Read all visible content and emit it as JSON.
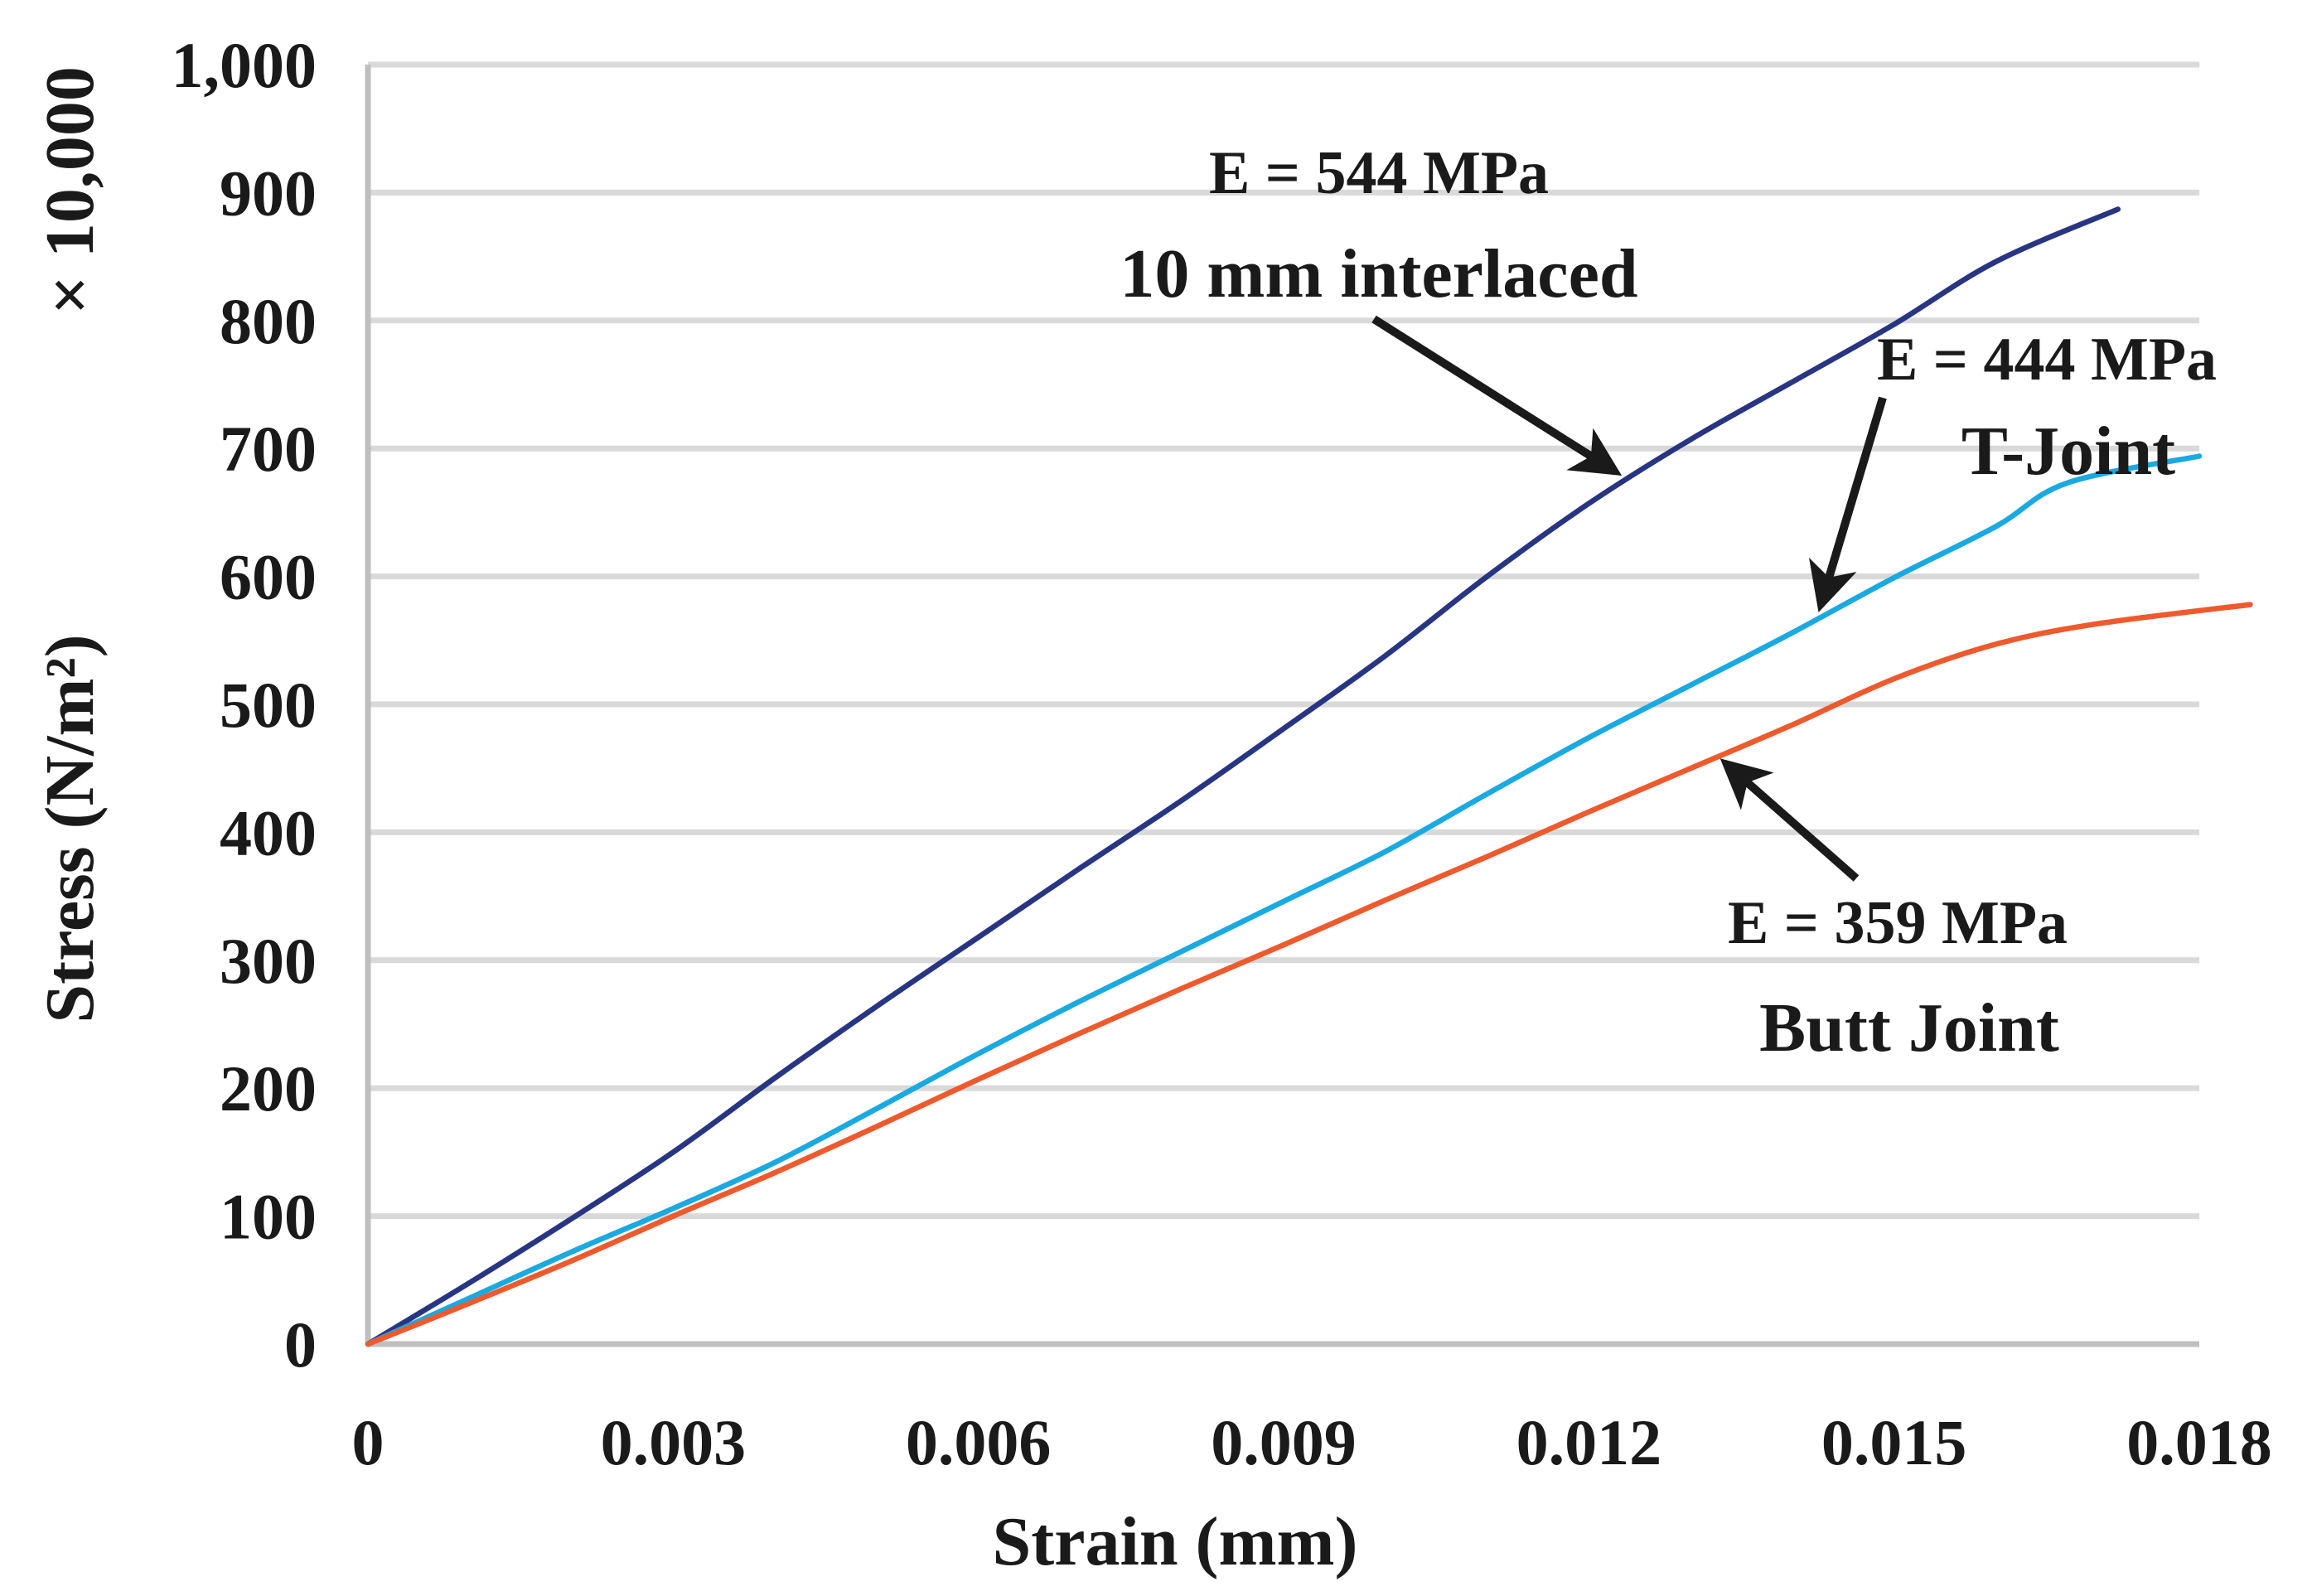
{
  "chart_data": {
    "type": "line",
    "title": "",
    "xlabel": "Strain (mm)",
    "ylabel": "Stress (N/m²)",
    "ylabel_multiplier": "× 10,000",
    "xlim": [
      0,
      0.018
    ],
    "ylim": [
      0,
      1000
    ],
    "x_ticks": [
      0,
      0.003,
      0.006,
      0.009,
      0.012,
      0.015,
      0.018
    ],
    "x_tick_labels": [
      "0",
      "0.003",
      "0.006",
      "0.009",
      "0.012",
      "0.015",
      "0.018"
    ],
    "y_ticks": [
      0,
      100,
      200,
      300,
      400,
      500,
      600,
      700,
      800,
      900,
      1000
    ],
    "y_tick_labels": [
      "0",
      "100",
      "200",
      "300",
      "400",
      "500",
      "600",
      "700",
      "800",
      "900",
      "1,000"
    ],
    "grid": true,
    "legend": "none",
    "series": [
      {
        "name": "10 mm interlaced",
        "color": "#283583",
        "x": [
          0,
          0.001,
          0.002,
          0.003,
          0.004,
          0.005,
          0.006,
          0.007,
          0.008,
          0.009,
          0.01,
          0.011,
          0.012,
          0.013,
          0.014,
          0.015,
          0.016,
          0.0172
        ],
        "y": [
          0,
          48,
          98,
          150,
          208,
          264,
          318,
          372,
          425,
          481,
          538,
          600,
          657,
          707,
          752,
          797,
          846,
          887
        ]
      },
      {
        "name": "T-Joint",
        "color": "#1aa9e1",
        "x": [
          0,
          0.001,
          0.002,
          0.003,
          0.004,
          0.005,
          0.006,
          0.007,
          0.008,
          0.009,
          0.01,
          0.011,
          0.012,
          0.013,
          0.014,
          0.015,
          0.016,
          0.0167,
          0.018
        ],
        "y": [
          0,
          36,
          72,
          106,
          142,
          184,
          227,
          268,
          307,
          346,
          385,
          430,
          474,
          515,
          556,
          599,
          639,
          673,
          694
        ]
      },
      {
        "name": "Butt Joint",
        "color": "#ee5a2d",
        "x": [
          0,
          0.001,
          0.002,
          0.003,
          0.004,
          0.005,
          0.006,
          0.007,
          0.008,
          0.009,
          0.01,
          0.011,
          0.012,
          0.013,
          0.014,
          0.015,
          0.016,
          0.017,
          0.0185
        ],
        "y": [
          0,
          32,
          65,
          100,
          134,
          170,
          207,
          243,
          278,
          312,
          347,
          381,
          416,
          450,
          484,
          520,
          547,
          563,
          578
        ]
      }
    ],
    "annotations": [
      {
        "series": "10 mm interlaced",
        "modulus": "E = 544 MPa",
        "label": "10 mm interlaced",
        "arrow_to": [
          0.0122,
          685
        ]
      },
      {
        "series": "T-Joint",
        "modulus": "E = 444 MPa",
        "label": "T-Joint",
        "arrow_to": [
          0.0143,
          583
        ]
      },
      {
        "series": "Butt Joint",
        "modulus": "E = 359 MPa",
        "label": "Butt Joint",
        "arrow_to": [
          0.0134,
          450
        ]
      }
    ]
  }
}
